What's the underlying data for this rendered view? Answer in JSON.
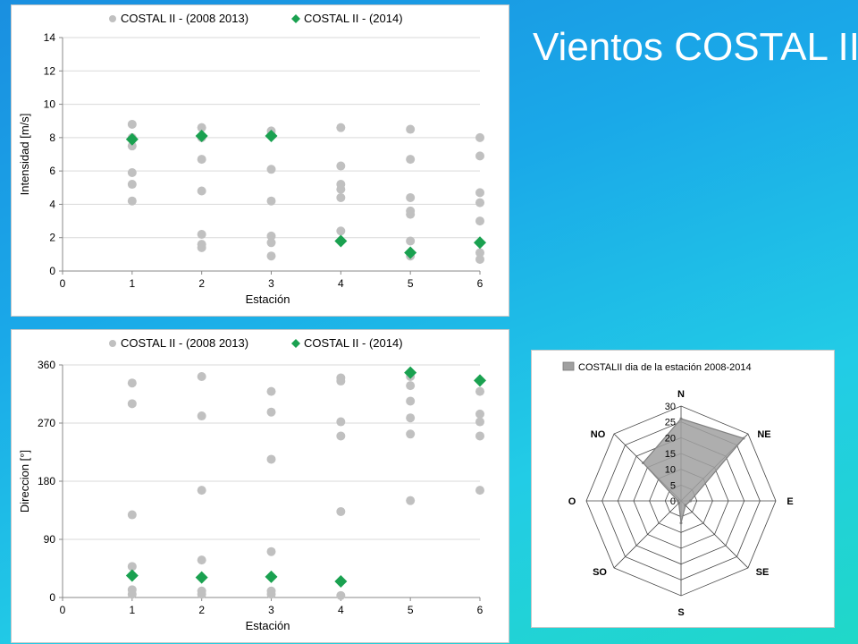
{
  "slide": {
    "title": "Vientos COSTAL II"
  },
  "colors": {
    "series_grey": "#c0c0c0",
    "series_green": "#1aa150",
    "radar_fill": "#a0a0a0"
  },
  "chart_data": [
    {
      "id": "intensity",
      "type": "scatter",
      "title": "",
      "xlabel": "Estación",
      "ylabel": "Intensidad [m/s]",
      "xlim": [
        0,
        6
      ],
      "ylim": [
        0,
        14
      ],
      "xticks": [
        0,
        1,
        2,
        3,
        4,
        5,
        6
      ],
      "yticks": [
        0,
        2,
        4,
        6,
        8,
        10,
        12,
        14
      ],
      "grid": true,
      "legend": "top",
      "series": [
        {
          "name": "COSTAL II - (2008 2013)",
          "marker": "circle",
          "points": [
            [
              1,
              8.8
            ],
            [
              1,
              8.0
            ],
            [
              1,
              7.5
            ],
            [
              1,
              5.9
            ],
            [
              1,
              5.2
            ],
            [
              1,
              4.2
            ],
            [
              2,
              8.6
            ],
            [
              2,
              8.0
            ],
            [
              2,
              6.7
            ],
            [
              2,
              4.8
            ],
            [
              2,
              2.2
            ],
            [
              2,
              1.6
            ],
            [
              2,
              1.4
            ],
            [
              3,
              8.4
            ],
            [
              3,
              8.2
            ],
            [
              3,
              6.1
            ],
            [
              3,
              4.2
            ],
            [
              3,
              2.1
            ],
            [
              3,
              1.7
            ],
            [
              3,
              0.9
            ],
            [
              4,
              8.6
            ],
            [
              4,
              6.3
            ],
            [
              4,
              5.2
            ],
            [
              4,
              4.9
            ],
            [
              4,
              4.4
            ],
            [
              4,
              2.4
            ],
            [
              5,
              8.5
            ],
            [
              5,
              6.7
            ],
            [
              5,
              4.4
            ],
            [
              5,
              3.6
            ],
            [
              5,
              3.4
            ],
            [
              5,
              1.8
            ],
            [
              5,
              0.9
            ],
            [
              6,
              8.0
            ],
            [
              6,
              6.9
            ],
            [
              6,
              4.7
            ],
            [
              6,
              4.1
            ],
            [
              6,
              3.0
            ],
            [
              6,
              1.1
            ],
            [
              6,
              0.7
            ]
          ]
        },
        {
          "name": "COSTAL II - (2014)",
          "marker": "diamond",
          "points": [
            [
              1,
              7.9
            ],
            [
              2,
              8.1
            ],
            [
              3,
              8.1
            ],
            [
              4,
              1.8
            ],
            [
              5,
              1.1
            ],
            [
              6,
              1.7
            ]
          ]
        }
      ]
    },
    {
      "id": "direction",
      "type": "scatter",
      "title": "",
      "xlabel": "Estación",
      "ylabel": "Direccion [°]",
      "xlim": [
        0,
        6
      ],
      "ylim": [
        0,
        360
      ],
      "xticks": [
        0,
        1,
        2,
        3,
        4,
        5,
        6
      ],
      "yticks": [
        0,
        90,
        180,
        270,
        360
      ],
      "grid": true,
      "legend": "top",
      "series": [
        {
          "name": "COSTAL II - (2008 2013)",
          "marker": "circle",
          "points": [
            [
              1,
              332
            ],
            [
              1,
              300
            ],
            [
              1,
              128
            ],
            [
              1,
              48
            ],
            [
              1,
              12
            ],
            [
              1,
              5
            ],
            [
              2,
              342
            ],
            [
              2,
              281
            ],
            [
              2,
              166
            ],
            [
              2,
              58
            ],
            [
              2,
              10
            ],
            [
              2,
              5
            ],
            [
              3,
              319
            ],
            [
              3,
              287
            ],
            [
              3,
              214
            ],
            [
              3,
              71
            ],
            [
              3,
              10
            ],
            [
              3,
              5
            ],
            [
              4,
              340
            ],
            [
              4,
              335
            ],
            [
              4,
              272
            ],
            [
              4,
              250
            ],
            [
              4,
              133
            ],
            [
              4,
              3
            ],
            [
              5,
              342
            ],
            [
              5,
              328
            ],
            [
              5,
              304
            ],
            [
              5,
              278
            ],
            [
              5,
              253
            ],
            [
              5,
              150
            ],
            [
              6,
              319
            ],
            [
              6,
              284
            ],
            [
              6,
              272
            ],
            [
              6,
              250
            ],
            [
              6,
              166
            ]
          ]
        },
        {
          "name": "COSTAL II - (2014)",
          "marker": "diamond",
          "points": [
            [
              1,
              34
            ],
            [
              2,
              31
            ],
            [
              3,
              32
            ],
            [
              4,
              25
            ],
            [
              5,
              348
            ],
            [
              6,
              336
            ]
          ]
        }
      ]
    },
    {
      "id": "wind-rose",
      "type": "radar",
      "title": "",
      "legend": "top",
      "series": [
        {
          "name": "COSTALII  dia de la estación 2008-2014",
          "values": [
            26,
            28,
            3,
            2,
            7,
            1,
            1,
            17
          ]
        }
      ],
      "categories": [
        "N",
        "NE",
        "E",
        "SE",
        "S",
        "SO",
        "O",
        "NO"
      ],
      "rlim": [
        0,
        30
      ],
      "rticks": [
        0,
        5,
        10,
        15,
        20,
        25,
        30
      ]
    }
  ]
}
